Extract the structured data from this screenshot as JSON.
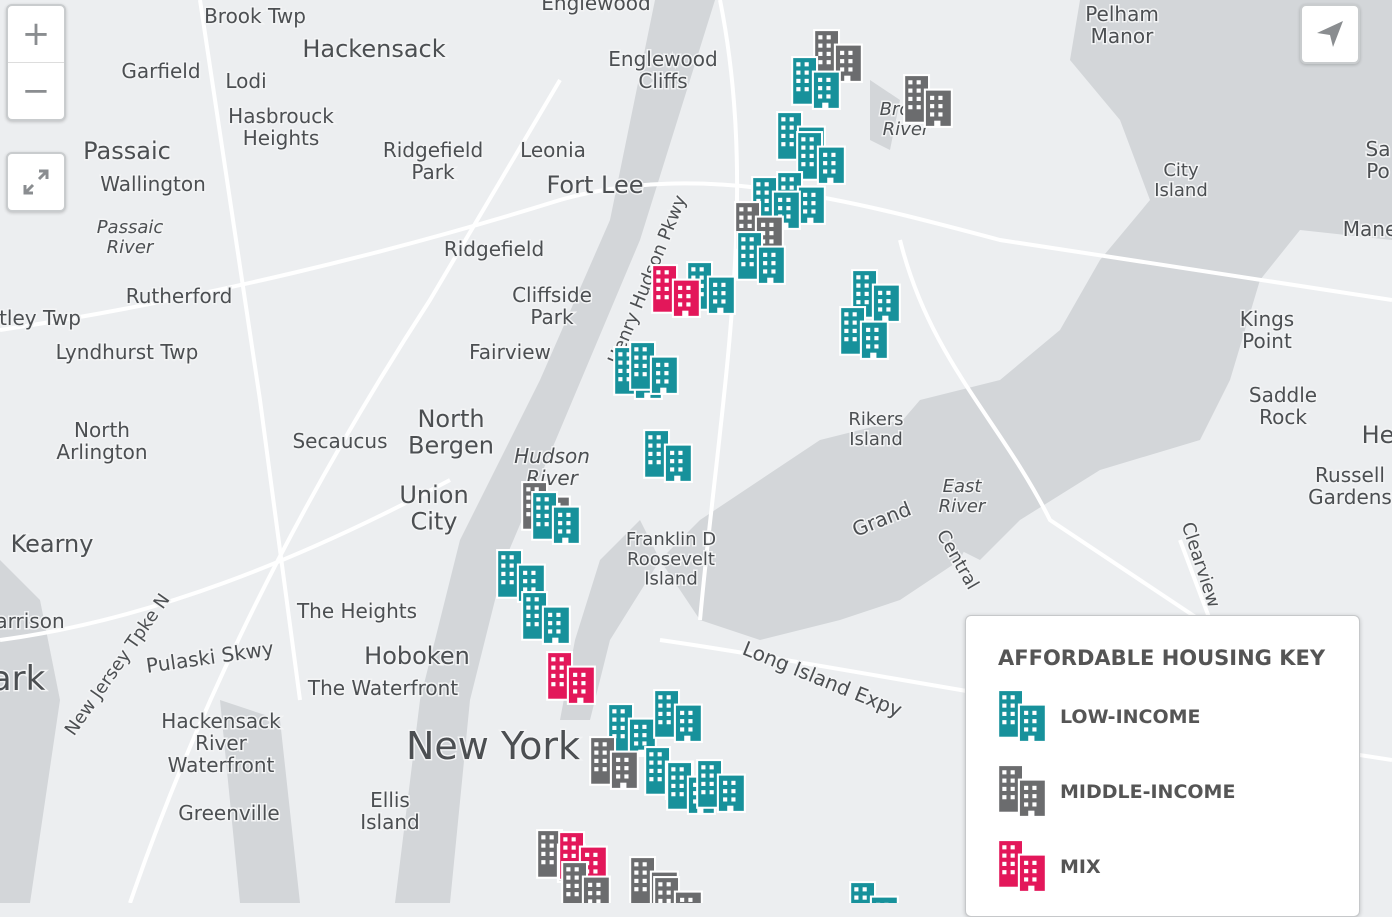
{
  "controls": {
    "zoom_in": "+",
    "zoom_out": "−"
  },
  "labels": [
    {
      "lines": [
        "Brook Twp"
      ]
    },
    {
      "lines": [
        "Englewood"
      ]
    },
    {
      "lines": [
        "Pelham",
        "Manor"
      ]
    },
    {
      "lines": [
        "Hackensack"
      ]
    },
    {
      "lines": [
        "Garfield"
      ]
    },
    {
      "lines": [
        "Lodi"
      ]
    },
    {
      "lines": [
        "Englewood",
        "Cliffs"
      ]
    },
    {
      "lines": [
        "Hasbrouck",
        "Heights"
      ]
    },
    {
      "lines": [
        "Passaic"
      ]
    },
    {
      "lines": [
        "Ridgefield",
        "Park"
      ]
    },
    {
      "lines": [
        "Leonia"
      ]
    },
    {
      "lines": [
        "Fort Lee"
      ]
    },
    {
      "lines": [
        "Wallington"
      ]
    },
    {
      "lines": [
        "City",
        "Island"
      ]
    },
    {
      "lines": [
        "Passaic",
        "River"
      ]
    },
    {
      "lines": [
        "Bronx",
        "River"
      ]
    },
    {
      "lines": [
        "Ridgefield"
      ]
    },
    {
      "lines": [
        "Rutherford"
      ]
    },
    {
      "lines": [
        "Cliffside",
        "Park"
      ]
    },
    {
      "lines": [
        "Kings",
        "Point"
      ]
    },
    {
      "lines": [
        "Lyndhurst Twp"
      ]
    },
    {
      "lines": [
        "Fairview"
      ]
    },
    {
      "lines": [
        "Saddle",
        "Rock"
      ]
    },
    {
      "lines": [
        "Rikers",
        "Island"
      ]
    },
    {
      "lines": [
        "North",
        "Bergen"
      ]
    },
    {
      "lines": [
        "North",
        "Arlington"
      ]
    },
    {
      "lines": [
        "Secaucus"
      ]
    },
    {
      "lines": [
        "Hudson",
        "River"
      ]
    },
    {
      "lines": [
        "Union",
        "City"
      ]
    },
    {
      "lines": [
        "East",
        "River"
      ]
    },
    {
      "lines": [
        "Russell",
        "Gardens"
      ]
    },
    {
      "lines": [
        "Kearny"
      ]
    },
    {
      "lines": [
        "Franklin D",
        "Roosevelt",
        "Island"
      ]
    },
    {
      "lines": [
        "The Heights"
      ]
    },
    {
      "lines": [
        "arrison"
      ]
    },
    {
      "lines": [
        "Hoboken"
      ]
    },
    {
      "lines": [
        "Pulaski Skwy"
      ]
    },
    {
      "lines": [
        "The Waterfront"
      ]
    },
    {
      "lines": [
        "Hackensack",
        "River",
        "Waterfront"
      ]
    },
    {
      "lines": [
        "New York"
      ]
    },
    {
      "lines": [
        "Ellis",
        "Island"
      ]
    },
    {
      "lines": [
        "Greenville"
      ]
    },
    {
      "lines": [
        "ark"
      ]
    },
    {
      "lines": [
        "tley Twp"
      ]
    },
    {
      "lines": [
        "Sa",
        "Po"
      ]
    },
    {
      "lines": [
        "Mane"
      ]
    },
    {
      "lines": [
        "He"
      ]
    },
    {
      "lines": [
        "Henry Hudson Pkwy"
      ]
    },
    {
      "lines": [
        "Grand"
      ]
    },
    {
      "lines": [
        "Central"
      ]
    },
    {
      "lines": [
        "Clearview"
      ]
    },
    {
      "lines": [
        "Long Island Expy"
      ]
    },
    {
      "lines": [
        "New Jersey Tpke N"
      ]
    }
  ],
  "legend": {
    "title": "AFFORDABLE HOUSING KEY",
    "items": [
      {
        "name": "LOW-INCOME",
        "color": "#17919b"
      },
      {
        "name": "MIDDLE-INCOME",
        "color": "#6b6c6e"
      },
      {
        "name": "MIX",
        "color": "#e3175a"
      }
    ]
  }
}
